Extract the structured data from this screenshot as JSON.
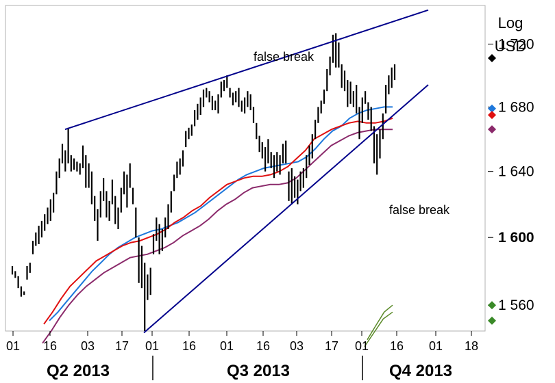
{
  "chart_data": {
    "type": "ohlc",
    "y_scale": "log",
    "ylabel_lines": [
      "Log",
      "USD"
    ],
    "ylim": [
      1545,
      1745
    ],
    "y_ticks": [
      {
        "value": 1560,
        "label": "1 560",
        "bold": false
      },
      {
        "value": 1600,
        "label": "1 600",
        "bold": true
      },
      {
        "value": 1640,
        "label": "1 640",
        "bold": false
      },
      {
        "value": 1680,
        "label": "1 680",
        "bold": false
      },
      {
        "value": 1720,
        "label": "1 720",
        "bold": false
      }
    ],
    "x_ticks": [
      "01",
      "16",
      "03",
      "17",
      "01",
      "16",
      "01",
      "16",
      "03",
      "17",
      "01",
      "16",
      "01",
      "18"
    ],
    "quarters": [
      "Q2 2013",
      "Q3 2013",
      "Q4 2013"
    ],
    "annotations": [
      "false break",
      "false break"
    ],
    "colors": {
      "bars": "#000000",
      "trendline": "#00008b",
      "ma_blue": "#1e78dc",
      "ma_red": "#e01010",
      "ma_purple": "#8b2a6b",
      "ma_green": "#5a8a28",
      "marker_black": "#000000",
      "marker_blue": "#1e78dc",
      "marker_red": "#e01010",
      "marker_purple": "#8b2a6b",
      "marker_green": "#3a8a28",
      "frame": "#b0b0b0"
    },
    "price_bars": [
      [
        1583,
        1578
      ],
      [
        1580,
        1576
      ],
      [
        1577,
        1570
      ],
      [
        1571,
        1565
      ],
      [
        1568,
        1566
      ],
      [
        1583,
        1575
      ],
      [
        1585,
        1579
      ],
      [
        1598,
        1590
      ],
      [
        1603,
        1595
      ],
      [
        1607,
        1596
      ],
      [
        1610,
        1600
      ],
      [
        1614,
        1604
      ],
      [
        1618,
        1608
      ],
      [
        1623,
        1610
      ],
      [
        1627,
        1615
      ],
      [
        1640,
        1626
      ],
      [
        1648,
        1636
      ],
      [
        1657,
        1645
      ],
      [
        1653,
        1640
      ],
      [
        1667,
        1645
      ],
      [
        1650,
        1640
      ],
      [
        1648,
        1641
      ],
      [
        1646,
        1640
      ],
      [
        1645,
        1638
      ],
      [
        1656,
        1642
      ],
      [
        1650,
        1630
      ],
      [
        1645,
        1630
      ],
      [
        1640,
        1620
      ],
      [
        1625,
        1610
      ],
      [
        1617,
        1598
      ],
      [
        1628,
        1612
      ],
      [
        1636,
        1622
      ],
      [
        1628,
        1612
      ],
      [
        1622,
        1610
      ],
      [
        1635,
        1620
      ],
      [
        1625,
        1608
      ],
      [
        1618,
        1605
      ],
      [
        1630,
        1615
      ],
      [
        1640,
        1626
      ],
      [
        1638,
        1618
      ],
      [
        1645,
        1630
      ],
      [
        1630,
        1620
      ],
      [
        1618,
        1600
      ],
      [
        1600,
        1573
      ],
      [
        1595,
        1570
      ],
      [
        1585,
        1545
      ],
      [
        1578,
        1563
      ],
      [
        1582,
        1566
      ],
      [
        1602,
        1590
      ],
      [
        1612,
        1598
      ],
      [
        1608,
        1590
      ],
      [
        1605,
        1592
      ],
      [
        1612,
        1600
      ],
      [
        1620,
        1605
      ],
      [
        1628,
        1615
      ],
      [
        1638,
        1628
      ],
      [
        1646,
        1636
      ],
      [
        1648,
        1638
      ],
      [
        1653,
        1643
      ],
      [
        1665,
        1655
      ],
      [
        1667,
        1660
      ],
      [
        1669,
        1662
      ],
      [
        1678,
        1668
      ],
      [
        1682,
        1672
      ],
      [
        1686,
        1675
      ],
      [
        1691,
        1680
      ],
      [
        1692,
        1686
      ],
      [
        1690,
        1683
      ],
      [
        1687,
        1678
      ],
      [
        1684,
        1678
      ],
      [
        1688,
        1676
      ],
      [
        1696,
        1686
      ],
      [
        1697,
        1690
      ],
      [
        1700,
        1692
      ],
      [
        1692,
        1686
      ],
      [
        1689,
        1681
      ],
      [
        1690,
        1683
      ],
      [
        1692,
        1680
      ],
      [
        1684,
        1677
      ],
      [
        1686,
        1676
      ],
      [
        1690,
        1680
      ],
      [
        1688,
        1678
      ],
      [
        1680,
        1670
      ],
      [
        1670,
        1660
      ],
      [
        1662,
        1652
      ],
      [
        1658,
        1648
      ],
      [
        1655,
        1640
      ],
      [
        1660,
        1645
      ],
      [
        1652,
        1642
      ],
      [
        1650,
        1636
      ],
      [
        1652,
        1640
      ],
      [
        1650,
        1638
      ],
      [
        1657,
        1645
      ],
      [
        1659,
        1645
      ],
      [
        1640,
        1622
      ],
      [
        1642,
        1620
      ],
      [
        1637,
        1624
      ],
      [
        1635,
        1620
      ],
      [
        1640,
        1628
      ],
      [
        1642,
        1630
      ],
      [
        1650,
        1636
      ],
      [
        1656,
        1644
      ],
      [
        1663,
        1648
      ],
      [
        1672,
        1660
      ],
      [
        1680,
        1670
      ],
      [
        1684,
        1676
      ],
      [
        1691,
        1682
      ],
      [
        1704,
        1690
      ],
      [
        1712,
        1700
      ],
      [
        1726,
        1708
      ],
      [
        1727,
        1705
      ],
      [
        1721,
        1705
      ],
      [
        1707,
        1692
      ],
      [
        1703,
        1690
      ],
      [
        1697,
        1680
      ],
      [
        1696,
        1682
      ],
      [
        1690,
        1680
      ],
      [
        1694,
        1676
      ],
      [
        1680,
        1660
      ],
      [
        1686,
        1670
      ],
      [
        1690,
        1682
      ],
      [
        1683,
        1672
      ],
      [
        1680,
        1665
      ],
      [
        1668,
        1645
      ],
      [
        1663,
        1638
      ],
      [
        1666,
        1648
      ],
      [
        1676,
        1660
      ],
      [
        1694,
        1676
      ],
      [
        1700,
        1688
      ],
      [
        1705,
        1692
      ],
      [
        1707,
        1697
      ]
    ],
    "moving_averages": {
      "blue": [
        1551,
        1556,
        1562,
        1568,
        1574,
        1580,
        1585,
        1590,
        1594,
        1597,
        1600,
        1602,
        1604,
        1605,
        1607,
        1609,
        1612,
        1615,
        1619,
        1623,
        1627,
        1631,
        1635,
        1638,
        1640,
        1642,
        1643,
        1644,
        1645,
        1646,
        1649,
        1654,
        1660,
        1665,
        1668,
        1673,
        1676,
        1678,
        1679,
        1680,
        1680
      ],
      "red": [
        1549,
        1556,
        1564,
        1571,
        1576,
        1581,
        1586,
        1589,
        1592,
        1595,
        1597,
        1598,
        1600,
        1602,
        1605,
        1609,
        1612,
        1616,
        1619,
        1624,
        1628,
        1632,
        1634,
        1636,
        1637,
        1637,
        1638,
        1640,
        1643,
        1648,
        1653,
        1660,
        1663,
        1666,
        1668,
        1670,
        1671,
        1670,
        1670,
        1671,
        1673
      ],
      "purple": [
        1538,
        1545,
        1553,
        1560,
        1566,
        1571,
        1575,
        1579,
        1582,
        1585,
        1588,
        1589,
        1590,
        1592,
        1594,
        1597,
        1601,
        1604,
        1607,
        1611,
        1616,
        1620,
        1623,
        1627,
        1630,
        1631,
        1632,
        1632,
        1633,
        1636,
        1641,
        1646,
        1651,
        1656,
        1659,
        1662,
        1664,
        1665,
        1666,
        1666,
        1666
      ],
      "green_a": [
        1540,
        1548,
        1556,
        1560
      ],
      "green_b": [
        1536,
        1544,
        1552,
        1556
      ]
    },
    "trendlines": [
      {
        "from": [
          1666,
          "Q2 2013 day 16"
        ],
        "to": [
          1742,
          "Q4 2013 after 16"
        ]
      },
      {
        "from": [
          1544,
          "Q3 2013 day 01"
        ],
        "to": [
          1694,
          "Q4 2013 after 16"
        ]
      }
    ],
    "markers": [
      {
        "value": 1711,
        "color_key": "marker_black"
      },
      {
        "value": 1679,
        "color_key": "marker_blue"
      },
      {
        "value": 1675,
        "color_key": "marker_red"
      },
      {
        "value": 1666,
        "color_key": "marker_purple"
      },
      {
        "value": 1560,
        "color_key": "marker_green"
      },
      {
        "value": 1551,
        "color_key": "marker_green"
      }
    ]
  }
}
